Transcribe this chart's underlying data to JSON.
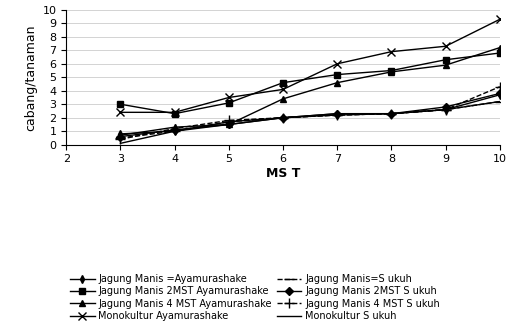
{
  "x": [
    2,
    3,
    4,
    5,
    6,
    7,
    8,
    9,
    10
  ],
  "series": [
    {
      "name": "Jagung Manis =Ayamurashake",
      "y": [
        null,
        0.8,
        1.0,
        1.5,
        2.0,
        2.2,
        2.3,
        2.6,
        3.7
      ],
      "marker": "d",
      "linestyle": "-",
      "markersize": 4
    },
    {
      "name": "Jagung Manis 2MST Ayamurashake",
      "y": [
        null,
        3.0,
        2.3,
        3.1,
        4.6,
        5.2,
        5.5,
        6.3,
        6.8
      ],
      "marker": "s",
      "linestyle": "-",
      "markersize": 4
    },
    {
      "name": "Jagung Manis 4 MST Ayamurashake",
      "y": [
        null,
        0.7,
        1.3,
        1.5,
        3.4,
        4.6,
        5.4,
        5.9,
        7.2
      ],
      "marker": "^",
      "linestyle": "-",
      "markersize": 5
    },
    {
      "name": "Monokultur Ayamurashake",
      "y": [
        null,
        2.4,
        2.4,
        3.5,
        4.1,
        6.0,
        6.9,
        7.3,
        9.3
      ],
      "marker": "x",
      "linestyle": "-",
      "markersize": 6
    },
    {
      "name": "Jagung Manis=S ukuh",
      "y": [
        null,
        0.5,
        1.0,
        1.7,
        2.0,
        2.2,
        2.3,
        2.6,
        3.2
      ],
      "marker": "_",
      "linestyle": "--",
      "markersize": 7
    },
    {
      "name": "Jagung Manis 2MST S ukuh",
      "y": [
        null,
        0.6,
        1.1,
        1.5,
        2.0,
        2.3,
        2.3,
        2.8,
        3.8
      ],
      "marker": "D",
      "linestyle": "-",
      "markersize": 4
    },
    {
      "name": "Jagung Manis 4 MST S ukuh",
      "y": [
        null,
        0.4,
        1.2,
        1.8,
        2.0,
        2.2,
        2.3,
        2.6,
        4.3
      ],
      "marker": "+",
      "linestyle": "--",
      "markersize": 7
    },
    {
      "name": "Monokultur S ukuh",
      "y": [
        null,
        0.1,
        1.0,
        1.7,
        2.0,
        2.3,
        2.3,
        2.6,
        3.2
      ],
      "marker": null,
      "linestyle": "-",
      "markersize": 5
    }
  ],
  "legend_col1": [
    0,
    2,
    4,
    6
  ],
  "legend_col2": [
    1,
    3,
    5,
    7
  ],
  "xlabel": "MS T",
  "ylabel": "cabang/tanaman",
  "ylim": [
    0,
    10
  ],
  "xlim": [
    2,
    10
  ],
  "xticks": [
    2,
    3,
    4,
    5,
    6,
    7,
    8,
    9,
    10
  ],
  "yticks": [
    0,
    1,
    2,
    3,
    4,
    5,
    6,
    7,
    8,
    9,
    10
  ],
  "color": "#000000",
  "background_color": "#ffffff",
  "axis_fontsize": 9,
  "tick_fontsize": 8,
  "legend_fontsize": 7
}
